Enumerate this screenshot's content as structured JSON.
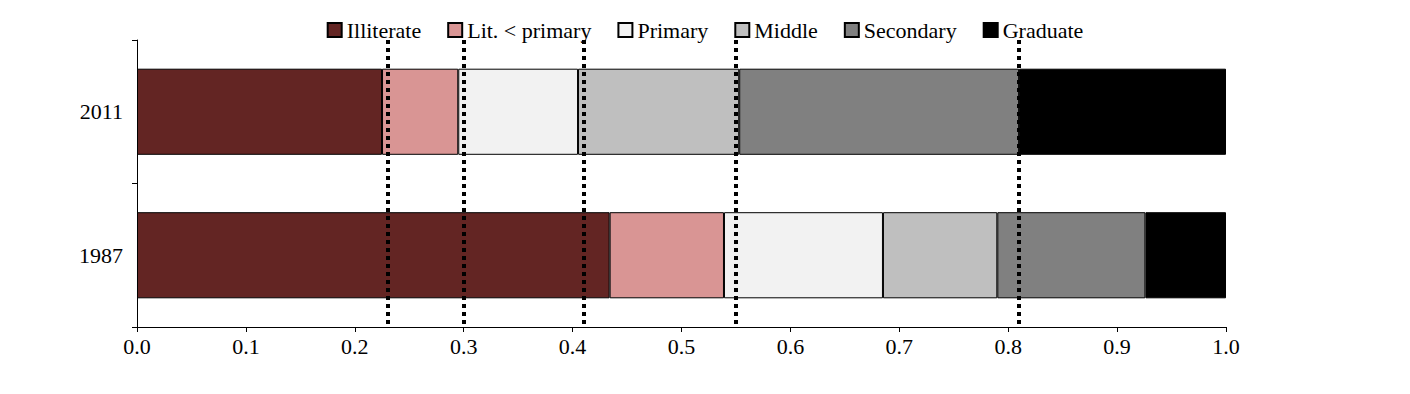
{
  "chart_data": {
    "type": "bar",
    "orientation": "horizontal",
    "stacked": true,
    "legend": "top",
    "grid": false,
    "data_labels": false,
    "categories": [
      "2011",
      "1987"
    ],
    "series": [
      {
        "name": "Illiterate",
        "color": "#632523",
        "values": [
          0.225,
          0.434
        ]
      },
      {
        "name": "Lit. < primary",
        "color": "#d99594",
        "values": [
          0.07,
          0.105
        ]
      },
      {
        "name": "Primary",
        "color": "#f2f2f2",
        "values": [
          0.11,
          0.146
        ]
      },
      {
        "name": "Middle",
        "color": "#bfbfbf",
        "values": [
          0.148,
          0.105
        ]
      },
      {
        "name": "Secondary",
        "color": "#808080",
        "values": [
          0.257,
          0.136
        ]
      },
      {
        "name": "Graduate",
        "color": "#000000",
        "values": [
          0.19,
          0.074
        ]
      }
    ],
    "xlim": [
      0,
      1
    ],
    "xticks": [
      {
        "value": 0,
        "label": "0.0"
      },
      {
        "value": 0.1,
        "label": "0.1"
      },
      {
        "value": 0.2,
        "label": "0.2"
      },
      {
        "value": 0.3,
        "label": "0.3"
      },
      {
        "value": 0.4,
        "label": "0.4"
      },
      {
        "value": 0.5,
        "label": "0.5"
      },
      {
        "value": 0.6,
        "label": "0.6"
      },
      {
        "value": 0.7,
        "label": "0.7"
      },
      {
        "value": 0.8,
        "label": "0.8"
      },
      {
        "value": 0.9,
        "label": "0.9"
      },
      {
        "value": 1,
        "label": "1.0"
      }
    ]
  }
}
